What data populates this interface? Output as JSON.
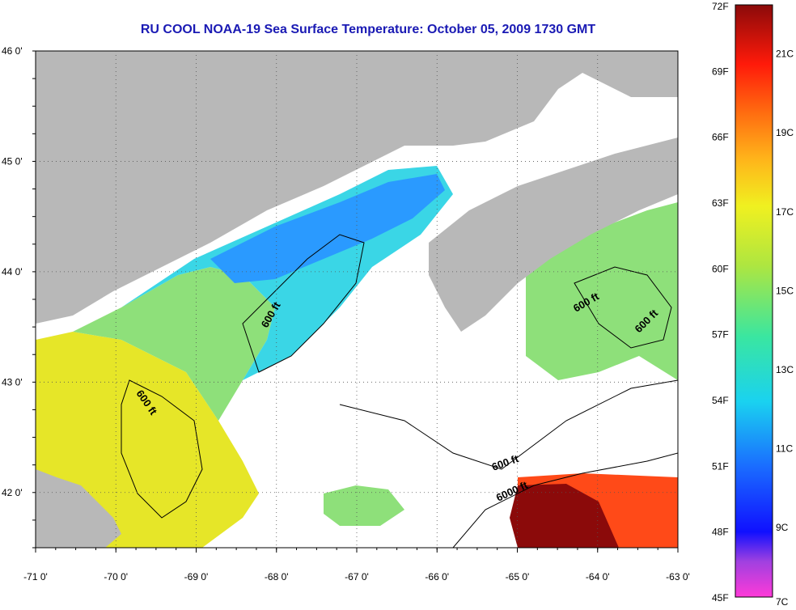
{
  "title": "RU COOL  NOAA-19  Sea Surface Temperature:  October 05, 2009 1730 GMT",
  "map": {
    "lon_range": [
      -71,
      -63
    ],
    "lat_range": [
      41.5,
      46
    ],
    "lon_ticks": [
      "-71 0'",
      "-70 0'",
      "-69 0'",
      "-68 0'",
      "-67 0'",
      "-66 0'",
      "-65 0'",
      "-64 0'",
      "-63 0'"
    ],
    "lat_ticks": [
      "46 0'",
      "45 0'",
      "44 0'",
      "43 0'",
      "42 0'"
    ],
    "contour_labels": [
      "600 ft",
      "600 ft",
      "600 ft",
      "600 ft",
      "600 ft",
      "6000 ft"
    ],
    "colors": {
      "land": "#b8b8b8",
      "no_data": "#ffffff",
      "contour": "#000000"
    }
  },
  "colorbar": {
    "fahrenheit_labels": [
      "72F",
      "69F",
      "66F",
      "63F",
      "60F",
      "57F",
      "54F",
      "51F",
      "48F",
      "45F"
    ],
    "celsius_labels": [
      "21C",
      "19C",
      "17C",
      "15C",
      "13C",
      "11C",
      "9C",
      "7C"
    ],
    "range_f": [
      45,
      72
    ]
  }
}
